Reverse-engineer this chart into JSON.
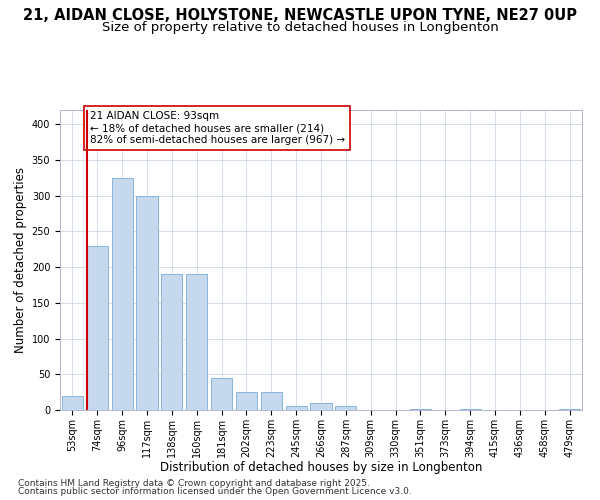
{
  "title1": "21, AIDAN CLOSE, HOLYSTONE, NEWCASTLE UPON TYNE, NE27 0UP",
  "title2": "Size of property relative to detached houses in Longbenton",
  "xlabel": "Distribution of detached houses by size in Longbenton",
  "ylabel": "Number of detached properties",
  "bins": [
    "53sqm",
    "74sqm",
    "96sqm",
    "117sqm",
    "138sqm",
    "160sqm",
    "181sqm",
    "202sqm",
    "223sqm",
    "245sqm",
    "266sqm",
    "287sqm",
    "309sqm",
    "330sqm",
    "351sqm",
    "373sqm",
    "394sqm",
    "415sqm",
    "436sqm",
    "458sqm",
    "479sqm"
  ],
  "values": [
    20,
    230,
    325,
    300,
    190,
    190,
    45,
    25,
    25,
    5,
    10,
    5,
    0,
    0,
    2,
    0,
    2,
    0,
    0,
    0,
    2
  ],
  "bar_color": "#c5d8ed",
  "bar_edge_color": "#7aaed6",
  "vline_color": "#cc0000",
  "annotation_text": "21 AIDAN CLOSE: 93sqm\n← 18% of detached houses are smaller (214)\n82% of semi-detached houses are larger (967) →",
  "annotation_box_color": "#ffffff",
  "annotation_box_edge": "#cc0000",
  "footer1": "Contains HM Land Registry data © Crown copyright and database right 2025.",
  "footer2": "Contains public sector information licensed under the Open Government Licence v3.0.",
  "bg_color": "#ffffff",
  "grid_color": "#ccd9e8",
  "ylim": [
    0,
    420
  ],
  "title1_fontsize": 10.5,
  "title2_fontsize": 9.5,
  "xlabel_fontsize": 8.5,
  "ylabel_fontsize": 8.5,
  "tick_fontsize": 7,
  "footer_fontsize": 6.5,
  "annot_fontsize": 7.5
}
